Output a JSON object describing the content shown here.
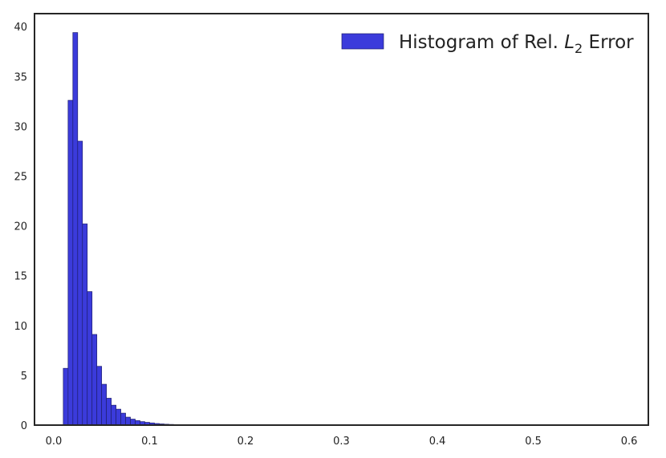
{
  "chart_data": {
    "type": "bar",
    "title": "",
    "xlabel": "",
    "ylabel": "",
    "xlim": [
      -0.02,
      0.62
    ],
    "ylim": [
      0,
      41.3
    ],
    "grid": false,
    "legend": {
      "position": "top-right",
      "label_prefix": "Histogram of Rel. ",
      "label_symbol": "L",
      "label_subscript": "2",
      "label_suffix": " Error"
    },
    "x_ticks": [
      0.0,
      0.1,
      0.2,
      0.3,
      0.4,
      0.5,
      0.6
    ],
    "x_tick_labels": [
      "0.0",
      "0.1",
      "0.2",
      "0.3",
      "0.4",
      "0.5",
      "0.6"
    ],
    "y_ticks": [
      0,
      5,
      10,
      15,
      20,
      25,
      30,
      35,
      40
    ],
    "y_tick_labels": [
      "0",
      "5",
      "10",
      "15",
      "20",
      "25",
      "30",
      "35",
      "40"
    ],
    "bar_color": "#3b3bdb",
    "bar_edge_color": "#1f1f6e",
    "series": [
      {
        "bin_edges": [
          0.01,
          0.015,
          0.02,
          0.025,
          0.03,
          0.035,
          0.04,
          0.045,
          0.05,
          0.055,
          0.06,
          0.065,
          0.07,
          0.075,
          0.08,
          0.085,
          0.09,
          0.095,
          0.1,
          0.105,
          0.11,
          0.115,
          0.12,
          0.125,
          0.13,
          0.135,
          0.14,
          0.145,
          0.15,
          0.155,
          0.16
        ],
        "counts": [
          5.7,
          32.6,
          39.4,
          28.5,
          20.2,
          13.4,
          9.1,
          5.9,
          4.1,
          2.7,
          2.0,
          1.6,
          1.2,
          0.8,
          0.6,
          0.45,
          0.35,
          0.28,
          0.22,
          0.16,
          0.12,
          0.09,
          0.07,
          0.05,
          0.04,
          0.03,
          0.02,
          0.02,
          0.01,
          0.01
        ]
      }
    ]
  }
}
